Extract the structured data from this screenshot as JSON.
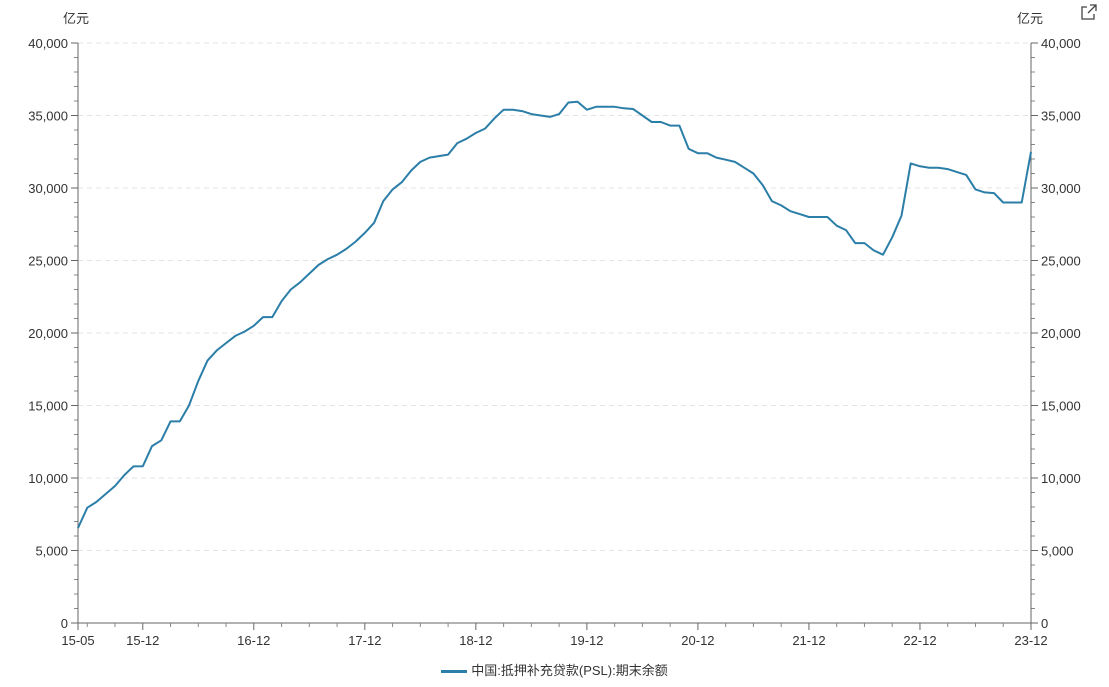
{
  "chart_data": {
    "type": "line",
    "unit_left": "亿元",
    "unit_right": "亿元",
    "x_start": "2015-05",
    "x_tick_labels": [
      "15-05",
      "15-12",
      "16-12",
      "17-12",
      "18-12",
      "19-12",
      "20-12",
      "21-12",
      "22-12",
      "23-12"
    ],
    "y_tick_labels": [
      "0",
      "5,000",
      "10,000",
      "15,000",
      "20,000",
      "25,000",
      "30,000",
      "35,000",
      "40,000"
    ],
    "ylim": [
      0,
      40000
    ],
    "grid": true,
    "legend_position": "bottom",
    "series": [
      {
        "name": "中国:抵押补充贷款(PSL):期末余额",
        "color": "#2b7ea8",
        "values": [
          6550,
          7950,
          8350,
          8900,
          9450,
          10200,
          10800,
          10810,
          12200,
          12600,
          13900,
          13900,
          15000,
          16700,
          18100,
          18800,
          19300,
          19800,
          20100,
          20500,
          21100,
          21100,
          22200,
          23000,
          23500,
          24100,
          24700,
          25100,
          25400,
          25800,
          26300,
          26900,
          27600,
          29100,
          29900,
          30400,
          31200,
          31800,
          32100,
          32200,
          32300,
          33100,
          33400,
          33800,
          34100,
          34800,
          35400,
          35400,
          35300,
          35100,
          35000,
          34900,
          35100,
          35900,
          35950,
          35400,
          35600,
          35600,
          35600,
          35500,
          35450,
          35000,
          34550,
          34550,
          34300,
          34300,
          32700,
          32400,
          32400,
          32100,
          31950,
          31800,
          31400,
          31000,
          30200,
          29100,
          28800,
          28400,
          28200,
          28000,
          28000,
          28000,
          27400,
          27100,
          26200,
          26200,
          25700,
          25400,
          26600,
          28100,
          31700,
          31500,
          31400,
          31400,
          31300,
          31100,
          30900,
          29900,
          29700,
          29650,
          29000,
          29000,
          29000,
          32500
        ]
      }
    ]
  },
  "legend": {
    "label": "中国:抵押补充贷款(PSL):期末余额"
  },
  "toolbar": {
    "export_icon": "external-link-icon"
  }
}
